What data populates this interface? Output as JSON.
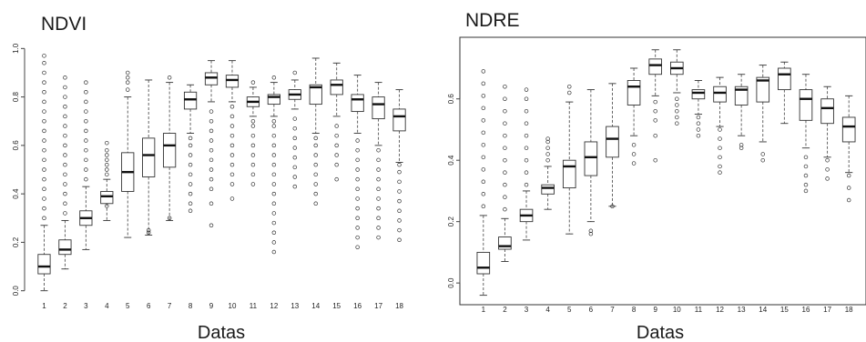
{
  "colors": {
    "ink": "#333333",
    "background": "#ffffff"
  },
  "chart_data": [
    {
      "type": "box",
      "title": "NDVI",
      "xlabel": "Datas",
      "ylabel": "",
      "frame": false,
      "categories": [
        "1",
        "2",
        "3",
        "4",
        "5",
        "6",
        "7",
        "8",
        "9",
        "10",
        "11",
        "12",
        "13",
        "14",
        "15",
        "16",
        "17",
        "18"
      ],
      "ylim": [
        -0.02,
        1.02
      ],
      "yticks": [
        0.0,
        0.2,
        0.4,
        0.6,
        0.8,
        1.0
      ],
      "ytick_labels": [
        "0.0",
        "0.2",
        "0.4",
        "0.6",
        "0.8",
        "1.0"
      ],
      "boxes": [
        {
          "x": "1",
          "whislo": 0.0,
          "q1": 0.07,
          "med": 0.1,
          "q3": 0.15,
          "whishi": 0.27,
          "fliers_hi": [
            0.3,
            0.34,
            0.38,
            0.42,
            0.46,
            0.5,
            0.54,
            0.58,
            0.62,
            0.66,
            0.7,
            0.74,
            0.78,
            0.82,
            0.86,
            0.9,
            0.94,
            0.97
          ]
        },
        {
          "x": "2",
          "whislo": 0.09,
          "q1": 0.15,
          "med": 0.17,
          "q3": 0.21,
          "whishi": 0.29,
          "fliers_hi": [
            0.32,
            0.36,
            0.4,
            0.44,
            0.48,
            0.52,
            0.56,
            0.6,
            0.64,
            0.68,
            0.72,
            0.76,
            0.8,
            0.84,
            0.88
          ]
        },
        {
          "x": "3",
          "whislo": 0.17,
          "q1": 0.27,
          "med": 0.3,
          "q3": 0.33,
          "whishi": 0.43,
          "fliers_hi": [
            0.46,
            0.5,
            0.54,
            0.58,
            0.62,
            0.66,
            0.7,
            0.74,
            0.78,
            0.82,
            0.86
          ]
        },
        {
          "x": "4",
          "whislo": 0.29,
          "q1": 0.36,
          "med": 0.39,
          "q3": 0.41,
          "whishi": 0.46,
          "fliers_lo": [
            0.35
          ],
          "fliers_hi": [
            0.48,
            0.5,
            0.52,
            0.54,
            0.56,
            0.58,
            0.61
          ]
        },
        {
          "x": "5",
          "whislo": 0.22,
          "q1": 0.41,
          "med": 0.49,
          "q3": 0.57,
          "whishi": 0.8,
          "fliers_hi": [
            0.83,
            0.86,
            0.88,
            0.9
          ]
        },
        {
          "x": "6",
          "whislo": 0.23,
          "q1": 0.47,
          "med": 0.56,
          "q3": 0.63,
          "whishi": 0.87,
          "fliers_lo": [
            0.24,
            0.25
          ]
        },
        {
          "x": "7",
          "whislo": 0.29,
          "q1": 0.51,
          "med": 0.6,
          "q3": 0.65,
          "whishi": 0.86,
          "fliers_lo": [
            0.3
          ],
          "fliers_hi": [
            0.88
          ]
        },
        {
          "x": "8",
          "whislo": 0.65,
          "q1": 0.75,
          "med": 0.79,
          "q3": 0.82,
          "whishi": 0.85,
          "fliers_lo": [
            0.33,
            0.36,
            0.4,
            0.44,
            0.48,
            0.52,
            0.56,
            0.6,
            0.63
          ]
        },
        {
          "x": "9",
          "whislo": 0.78,
          "q1": 0.85,
          "med": 0.88,
          "q3": 0.9,
          "whishi": 0.95,
          "fliers_lo": [
            0.27,
            0.36,
            0.42,
            0.46,
            0.5,
            0.54,
            0.58,
            0.62,
            0.66,
            0.7,
            0.74
          ]
        },
        {
          "x": "10",
          "whislo": 0.78,
          "q1": 0.84,
          "med": 0.87,
          "q3": 0.89,
          "whishi": 0.95,
          "fliers_lo": [
            0.38,
            0.44,
            0.48,
            0.52,
            0.56,
            0.6,
            0.64,
            0.68,
            0.72,
            0.76
          ]
        },
        {
          "x": "11",
          "whislo": 0.72,
          "q1": 0.76,
          "med": 0.78,
          "q3": 0.8,
          "whishi": 0.84,
          "fliers_lo": [
            0.44,
            0.48,
            0.52,
            0.56,
            0.6,
            0.64,
            0.68,
            0.7
          ],
          "fliers_hi": [
            0.86
          ]
        },
        {
          "x": "12",
          "whislo": 0.72,
          "q1": 0.77,
          "med": 0.8,
          "q3": 0.81,
          "whishi": 0.86,
          "fliers_lo": [
            0.16,
            0.2,
            0.24,
            0.28,
            0.32,
            0.36,
            0.4,
            0.44,
            0.48,
            0.52,
            0.56,
            0.6,
            0.64,
            0.68,
            0.7
          ],
          "fliers_hi": [
            0.88
          ]
        },
        {
          "x": "13",
          "whislo": 0.75,
          "q1": 0.79,
          "med": 0.81,
          "q3": 0.83,
          "whishi": 0.87,
          "fliers_lo": [
            0.43,
            0.47,
            0.51,
            0.55,
            0.59,
            0.63,
            0.67,
            0.71
          ],
          "fliers_hi": [
            0.9
          ]
        },
        {
          "x": "14",
          "whislo": 0.65,
          "q1": 0.77,
          "med": 0.84,
          "q3": 0.85,
          "whishi": 0.96,
          "fliers_lo": [
            0.36,
            0.4,
            0.44,
            0.48,
            0.52,
            0.56,
            0.6,
            0.63
          ]
        },
        {
          "x": "15",
          "whislo": 0.72,
          "q1": 0.81,
          "med": 0.85,
          "q3": 0.87,
          "whishi": 0.94,
          "fliers_lo": [
            0.46,
            0.52,
            0.56,
            0.6,
            0.64,
            0.68
          ]
        },
        {
          "x": "16",
          "whislo": 0.65,
          "q1": 0.74,
          "med": 0.79,
          "q3": 0.81,
          "whishi": 0.89,
          "fliers_lo": [
            0.18,
            0.22,
            0.26,
            0.3,
            0.34,
            0.38,
            0.42,
            0.46,
            0.5,
            0.54,
            0.58,
            0.62
          ]
        },
        {
          "x": "17",
          "whislo": 0.6,
          "q1": 0.71,
          "med": 0.77,
          "q3": 0.8,
          "whishi": 0.86,
          "fliers_lo": [
            0.22,
            0.26,
            0.3,
            0.34,
            0.38,
            0.42,
            0.46,
            0.5,
            0.54,
            0.58
          ]
        },
        {
          "x": "18",
          "whislo": 0.53,
          "q1": 0.66,
          "med": 0.72,
          "q3": 0.75,
          "whishi": 0.83,
          "fliers_lo": [
            0.21,
            0.25,
            0.29,
            0.33,
            0.37,
            0.41,
            0.45,
            0.49,
            0.52
          ]
        }
      ]
    },
    {
      "type": "box",
      "title": "NDRE",
      "xlabel": "Datas",
      "ylabel": "",
      "frame": true,
      "categories": [
        "1",
        "2",
        "3",
        "4",
        "5",
        "6",
        "7",
        "8",
        "9",
        "10",
        "11",
        "12",
        "13",
        "14",
        "15",
        "16",
        "17",
        "18"
      ],
      "ylim": [
        -0.05,
        0.78
      ],
      "yticks": [
        0.0,
        0.2,
        0.4,
        0.6
      ],
      "ytick_labels": [
        "0.0",
        "0.2",
        "0.4",
        "0.6"
      ],
      "boxes": [
        {
          "x": "1",
          "whislo": -0.04,
          "q1": 0.03,
          "med": 0.05,
          "q3": 0.1,
          "whishi": 0.22,
          "fliers_hi": [
            0.25,
            0.29,
            0.33,
            0.37,
            0.41,
            0.45,
            0.49,
            0.53,
            0.57,
            0.61,
            0.65,
            0.69
          ]
        },
        {
          "x": "2",
          "whislo": 0.07,
          "q1": 0.11,
          "med": 0.12,
          "q3": 0.15,
          "whishi": 0.21,
          "fliers_hi": [
            0.24,
            0.28,
            0.32,
            0.36,
            0.4,
            0.44,
            0.48,
            0.52,
            0.56,
            0.6,
            0.64
          ]
        },
        {
          "x": "3",
          "whislo": 0.14,
          "q1": 0.2,
          "med": 0.22,
          "q3": 0.24,
          "whishi": 0.3,
          "fliers_hi": [
            0.32,
            0.36,
            0.4,
            0.44,
            0.48,
            0.52,
            0.56,
            0.6,
            0.63
          ]
        },
        {
          "x": "4",
          "whislo": 0.24,
          "q1": 0.29,
          "med": 0.31,
          "q3": 0.32,
          "whishi": 0.38,
          "fliers_hi": [
            0.4,
            0.42,
            0.44,
            0.46,
            0.47
          ]
        },
        {
          "x": "5",
          "whislo": 0.16,
          "q1": 0.31,
          "med": 0.38,
          "q3": 0.4,
          "whishi": 0.59,
          "fliers_hi": [
            0.62,
            0.64
          ]
        },
        {
          "x": "6",
          "whislo": 0.2,
          "q1": 0.35,
          "med": 0.41,
          "q3": 0.46,
          "whishi": 0.63,
          "fliers_lo": [
            0.16,
            0.17
          ]
        },
        {
          "x": "7",
          "whislo": 0.25,
          "q1": 0.41,
          "med": 0.47,
          "q3": 0.51,
          "whishi": 0.65,
          "fliers_lo": [
            0.25
          ]
        },
        {
          "x": "8",
          "whislo": 0.48,
          "q1": 0.58,
          "med": 0.64,
          "q3": 0.66,
          "whishi": 0.7,
          "fliers_lo": [
            0.39,
            0.42,
            0.45
          ]
        },
        {
          "x": "9",
          "whislo": 0.61,
          "q1": 0.68,
          "med": 0.71,
          "q3": 0.73,
          "whishi": 0.76,
          "fliers_lo": [
            0.4,
            0.48,
            0.53,
            0.56,
            0.59
          ]
        },
        {
          "x": "10",
          "whislo": 0.62,
          "q1": 0.68,
          "med": 0.7,
          "q3": 0.72,
          "whishi": 0.76,
          "fliers_lo": [
            0.52,
            0.54,
            0.56,
            0.58,
            0.6
          ]
        },
        {
          "x": "11",
          "whislo": 0.55,
          "q1": 0.6,
          "med": 0.62,
          "q3": 0.63,
          "whishi": 0.66,
          "fliers_lo": [
            0.48,
            0.5,
            0.52,
            0.54
          ]
        },
        {
          "x": "12",
          "whislo": 0.51,
          "q1": 0.59,
          "med": 0.62,
          "q3": 0.64,
          "whishi": 0.67,
          "fliers_lo": [
            0.36,
            0.38,
            0.41,
            0.44,
            0.47,
            0.5
          ]
        },
        {
          "x": "13",
          "whislo": 0.48,
          "q1": 0.58,
          "med": 0.63,
          "q3": 0.64,
          "whishi": 0.68,
          "fliers_lo": [
            0.44,
            0.45
          ]
        },
        {
          "x": "14",
          "whislo": 0.46,
          "q1": 0.59,
          "med": 0.66,
          "q3": 0.67,
          "whishi": 0.71,
          "fliers_lo": [
            0.4,
            0.42
          ]
        },
        {
          "x": "15",
          "whislo": 0.52,
          "q1": 0.63,
          "med": 0.68,
          "q3": 0.7,
          "whishi": 0.72
        },
        {
          "x": "16",
          "whislo": 0.44,
          "q1": 0.53,
          "med": 0.6,
          "q3": 0.63,
          "whishi": 0.68,
          "fliers_lo": [
            0.3,
            0.32,
            0.35,
            0.38,
            0.41
          ]
        },
        {
          "x": "17",
          "whislo": 0.41,
          "q1": 0.52,
          "med": 0.57,
          "q3": 0.6,
          "whishi": 0.64,
          "fliers_lo": [
            0.34,
            0.37,
            0.4
          ]
        },
        {
          "x": "18",
          "whislo": 0.36,
          "q1": 0.46,
          "med": 0.51,
          "q3": 0.54,
          "whishi": 0.61,
          "fliers_lo": [
            0.27,
            0.31,
            0.35
          ]
        }
      ]
    }
  ]
}
